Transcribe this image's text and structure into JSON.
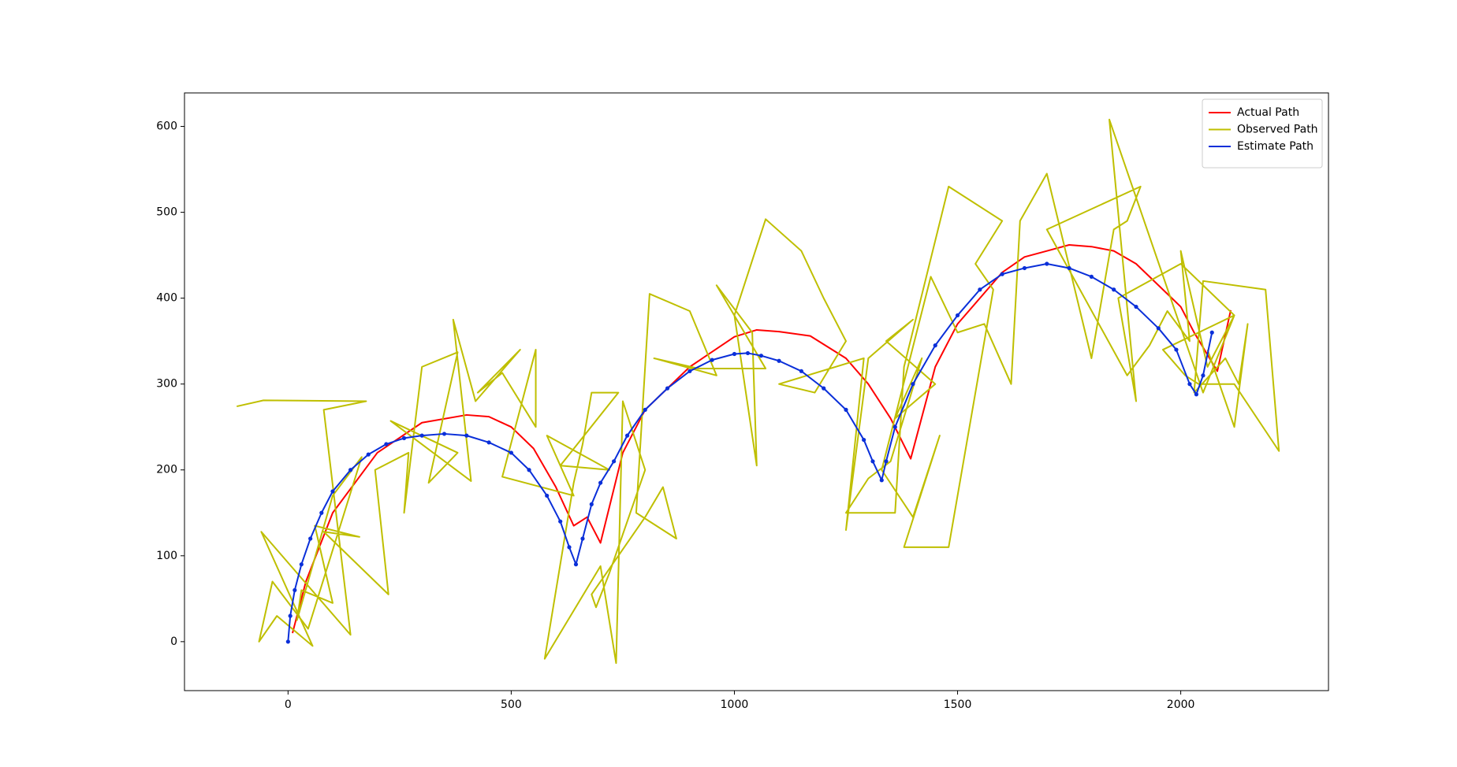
{
  "chart_data": {
    "type": "line",
    "xlim": [
      -232,
      2331
    ],
    "ylim": [
      -57,
      639
    ],
    "xticks": [
      0,
      500,
      1000,
      1500,
      2000
    ],
    "yticks": [
      0,
      100,
      200,
      300,
      400,
      500,
      600
    ],
    "grid": false,
    "legend": "upper right",
    "series": [
      {
        "name": "Actual Path",
        "color": "#ff0000",
        "markers": false,
        "x": [
          10,
          40,
          100,
          200,
          300,
          400,
          450,
          500,
          550,
          600,
          640,
          670,
          700,
          750,
          800,
          900,
          1000,
          1050,
          1100,
          1170,
          1250,
          1300,
          1350,
          1395,
          1450,
          1500,
          1550,
          1600,
          1650,
          1700,
          1750,
          1800,
          1850,
          1900,
          1950,
          2000,
          2030,
          2082,
          2112
        ],
        "values": [
          10,
          70,
          150,
          220,
          255,
          264,
          262,
          250,
          225,
          180,
          135,
          145,
          115,
          220,
          270,
          320,
          355,
          363,
          361,
          356,
          330,
          300,
          260,
          213,
          320,
          370,
          400,
          430,
          448,
          455,
          462,
          460,
          455,
          440,
          415,
          390,
          360,
          315,
          386
        ]
      },
      {
        "name": "Observed Path",
        "color": "#bfbf00",
        "markers": false,
        "x": [
          -115,
          -55,
          175,
          80,
          140,
          -60,
          55,
          -25,
          -65,
          -35,
          45,
          165,
          100,
          20,
          30,
          100,
          60,
          160,
          80,
          225,
          195,
          270,
          260,
          300,
          380,
          315,
          380,
          230,
          410,
          370,
          420,
          520,
          425,
          480,
          555,
          555,
          480,
          640,
          580,
          720,
          610,
          740,
          680,
          660,
          640,
          575,
          700,
          735,
          750,
          800,
          720,
          690,
          680,
          800,
          840,
          870,
          780,
          810,
          900,
          960,
          820,
          920,
          1070,
          960,
          1040,
          1050,
          1000,
          1070,
          1150,
          1200,
          1250,
          1180,
          1100,
          1290,
          1250,
          1300,
          1400,
          1340,
          1450,
          1360,
          1420,
          1350,
          1300,
          1250,
          1360,
          1380,
          1480,
          1600,
          1540,
          1580,
          1480,
          1380,
          1460,
          1400,
          1330,
          1440,
          1500,
          1560,
          1620,
          1640,
          1700,
          1800,
          1850,
          1880,
          1910,
          1700,
          1880,
          1930,
          1970,
          2020,
          2000,
          2060,
          2120,
          2050,
          1840,
          1900,
          1860,
          2000,
          2120,
          1960,
          2010,
          2040,
          2120,
          2220,
          2190,
          2050,
          2030,
          2100,
          2130,
          2150,
          2120,
          2060
        ],
        "values": [
          274,
          281,
          280,
          270,
          8,
          128,
          -5,
          30,
          0,
          70,
          15,
          215,
          170,
          25,
          60,
          45,
          135,
          122,
          128,
          55,
          200,
          220,
          150,
          320,
          337,
          185,
          220,
          257,
          187,
          375,
          280,
          340,
          290,
          313,
          250,
          340,
          192,
          170,
          240,
          200,
          205,
          290,
          290,
          230,
          185,
          -20,
          88,
          -25,
          280,
          200,
          80,
          40,
          55,
          145,
          180,
          120,
          150,
          405,
          385,
          310,
          330,
          318,
          318,
          415,
          360,
          205,
          380,
          492,
          455,
          400,
          350,
          290,
          300,
          330,
          130,
          330,
          375,
          350,
          300,
          260,
          330,
          210,
          190,
          150,
          150,
          320,
          530,
          490,
          440,
          410,
          110,
          110,
          240,
          145,
          200,
          425,
          360,
          370,
          300,
          490,
          545,
          330,
          480,
          490,
          530,
          480,
          310,
          345,
          385,
          350,
          455,
          320,
          380,
          290,
          608,
          280,
          400,
          440,
          380,
          340,
          310,
          300,
          300,
          222,
          410,
          420,
          290,
          330,
          300,
          370,
          250,
          340
        ]
      },
      {
        "name": "Estimate Path",
        "color": "#0a2fd9",
        "markers": true,
        "x": [
          0,
          5,
          15,
          30,
          50,
          75,
          100,
          140,
          180,
          220,
          260,
          300,
          350,
          400,
          450,
          500,
          540,
          580,
          610,
          630,
          645,
          660,
          680,
          700,
          730,
          760,
          800,
          850,
          900,
          950,
          1000,
          1030,
          1060,
          1100,
          1150,
          1200,
          1250,
          1290,
          1310,
          1330,
          1340,
          1360,
          1400,
          1450,
          1500,
          1550,
          1600,
          1650,
          1700,
          1750,
          1800,
          1850,
          1900,
          1950,
          1990,
          2020,
          2035,
          2050,
          2070
        ],
        "values": [
          0,
          30,
          60,
          90,
          120,
          150,
          175,
          200,
          218,
          230,
          237,
          240,
          242,
          240,
          232,
          220,
          200,
          170,
          140,
          110,
          90,
          120,
          160,
          185,
          210,
          240,
          270,
          295,
          315,
          328,
          335,
          336,
          333,
          327,
          315,
          295,
          270,
          235,
          210,
          188,
          210,
          250,
          300,
          345,
          380,
          410,
          428,
          435,
          440,
          435,
          425,
          410,
          390,
          365,
          340,
          300,
          288,
          310,
          360
        ]
      }
    ]
  }
}
